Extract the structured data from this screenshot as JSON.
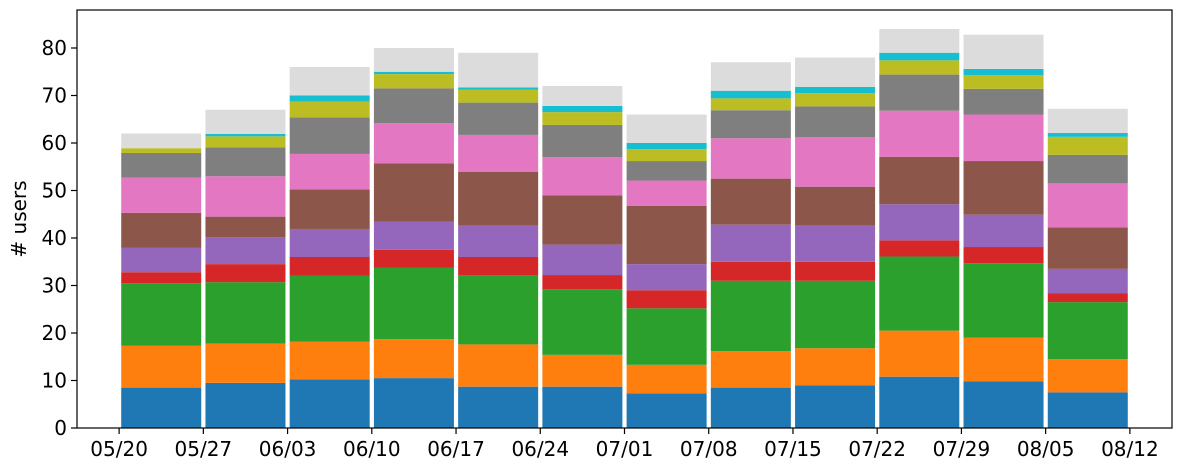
{
  "chart_data": {
    "type": "bar",
    "stacked": true,
    "title": "",
    "xlabel": "",
    "ylabel": "# users",
    "ylim": [
      0,
      88
    ],
    "yticks": [
      0,
      10,
      20,
      30,
      40,
      50,
      60,
      70,
      80
    ],
    "grid": false,
    "legend": "none",
    "x_tick_labels": [
      "05/20",
      "05/27",
      "06/03",
      "06/10",
      "06/17",
      "06/24",
      "07/01",
      "07/08",
      "07/15",
      "07/22",
      "07/29",
      "08/05",
      "08/12"
    ],
    "x_tick_positions": [
      0,
      1,
      2,
      3,
      4,
      5,
      6,
      7,
      8,
      9,
      10,
      11,
      12
    ],
    "bar_centers": [
      0.5,
      1.5,
      2.5,
      3.5,
      4.5,
      5.5,
      6.5,
      7.5,
      8.5,
      9.5,
      10.5,
      11.5
    ],
    "colors": [
      "#1f77b4",
      "#ff7f0e",
      "#2ca02c",
      "#d62728",
      "#9467bd",
      "#8c564b",
      "#e377c2",
      "#7f7f7f",
      "#bcbd22",
      "#17becf",
      "#dcdcdc"
    ],
    "series": [
      {
        "values": [
          8.5,
          9.5,
          10.2,
          10.5,
          8.7,
          8.7,
          7.3,
          8.5,
          9.0,
          10.8,
          9.8,
          7.5
        ]
      },
      {
        "values": [
          8.8,
          8.3,
          8.0,
          8.2,
          8.9,
          6.7,
          6.0,
          7.7,
          7.8,
          9.7,
          9.2,
          7.0
        ]
      },
      {
        "values": [
          13.2,
          12.9,
          13.9,
          15.0,
          14.6,
          13.8,
          11.9,
          14.8,
          14.2,
          15.6,
          15.7,
          12.0
        ]
      },
      {
        "values": [
          2.3,
          3.8,
          3.9,
          3.8,
          3.8,
          3.0,
          3.8,
          4.0,
          4.0,
          3.4,
          3.4,
          1.9
        ]
      },
      {
        "values": [
          5.2,
          5.7,
          5.9,
          5.9,
          6.6,
          6.4,
          5.5,
          7.8,
          7.6,
          7.6,
          6.8,
          5.1
        ]
      },
      {
        "values": [
          7.3,
          4.3,
          8.3,
          12.3,
          11.3,
          10.4,
          12.3,
          9.7,
          8.2,
          10.0,
          11.3,
          8.7
        ]
      },
      {
        "values": [
          7.4,
          8.5,
          7.5,
          8.5,
          7.8,
          8.0,
          5.3,
          8.5,
          10.4,
          9.7,
          9.8,
          9.3
        ]
      },
      {
        "values": [
          5.2,
          6.1,
          7.7,
          7.3,
          6.8,
          6.8,
          4.1,
          5.9,
          6.5,
          7.6,
          5.4,
          6.0
        ]
      },
      {
        "values": [
          1.0,
          2.3,
          3.3,
          3.0,
          2.7,
          2.7,
          2.5,
          2.5,
          2.8,
          3.0,
          2.9,
          3.8
        ]
      },
      {
        "values": [
          0.0,
          0.5,
          1.3,
          0.5,
          0.5,
          1.3,
          1.3,
          1.6,
          1.3,
          1.6,
          1.3,
          0.8
        ]
      },
      {
        "values": [
          3.1,
          5.1,
          6.0,
          5.0,
          7.3,
          4.2,
          6.0,
          6.0,
          6.2,
          5.0,
          7.2,
          5.1
        ]
      }
    ]
  }
}
